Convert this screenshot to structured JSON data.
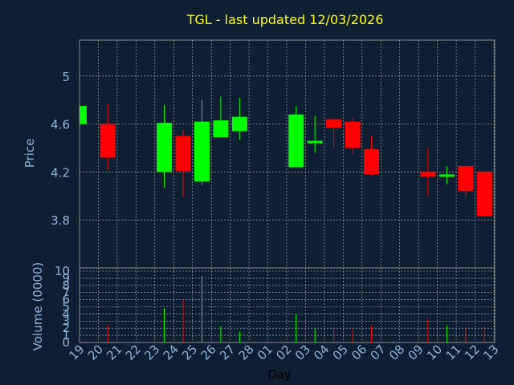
{
  "chart_data": {
    "type": "candlestick",
    "title": "TGL - last updated 12/03/2026",
    "xlabel": "Day",
    "ylabel": "Price",
    "volume_label": "Volume (0000)",
    "x_ticks": [
      "19",
      "20",
      "21",
      "22",
      "23",
      "24",
      "25",
      "26",
      "27",
      "28",
      "01",
      "02",
      "03",
      "04",
      "05",
      "06",
      "07",
      "08",
      "09",
      "10",
      "11",
      "12",
      "13"
    ],
    "y_ticks": [
      3.8,
      4.2,
      4.6,
      5
    ],
    "ylim": [
      3.4,
      5.3
    ],
    "volume_ticks": [
      0,
      1,
      2,
      3,
      4,
      5,
      6,
      7,
      8,
      9,
      10
    ],
    "volume_ylim": [
      0,
      10
    ],
    "grid": true,
    "colors": {
      "background": "#0f1f33",
      "up": "#00ff00",
      "down": "#ff0000",
      "title": "#ffff00",
      "axis_text": "#8fb3d6",
      "grid": "#bbbbbb",
      "frame": "#888888",
      "xlabel": "#000000"
    },
    "candles": [
      {
        "x": 0.0,
        "open": 4.6,
        "high": 4.75,
        "low": 4.6,
        "close": 4.75,
        "volume": 0
      },
      {
        "x": 1.0,
        "open": 4.6,
        "high": 4.77,
        "low": 4.22,
        "close": 4.32,
        "volume": 2.5
      },
      {
        "x": 4.0,
        "open": 4.2,
        "high": 4.76,
        "low": 4.07,
        "close": 4.61,
        "volume": 4.8
      },
      {
        "x": 5.0,
        "open": 4.5,
        "high": 4.55,
        "low": 3.99,
        "close": 4.21,
        "volume": 6.0
      },
      {
        "x": 6.0,
        "open": 4.12,
        "high": 4.8,
        "low": 4.09,
        "close": 4.62,
        "volume": 9.3
      },
      {
        "x": 7.0,
        "open": 4.49,
        "high": 4.83,
        "low": 4.49,
        "close": 4.63,
        "volume": 2.3
      },
      {
        "x": 8.0,
        "open": 4.54,
        "high": 4.82,
        "low": 4.47,
        "close": 4.66,
        "volume": 1.5
      },
      {
        "x": 11.0,
        "open": 4.24,
        "high": 4.75,
        "low": 4.24,
        "close": 4.68,
        "volume": 4.0
      },
      {
        "x": 12.0,
        "open": 4.43,
        "high": 4.67,
        "low": 4.36,
        "close": 4.45,
        "volume": 1.9
      },
      {
        "x": 13.0,
        "open": 4.64,
        "high": 4.64,
        "low": 4.4,
        "close": 4.57,
        "volume": 2.0
      },
      {
        "x": 14.0,
        "open": 4.62,
        "high": 4.65,
        "low": 4.35,
        "close": 4.4,
        "volume": 2.0
      },
      {
        "x": 15.0,
        "open": 4.39,
        "high": 4.5,
        "low": 4.17,
        "close": 4.18,
        "volume": 2.3
      },
      {
        "x": 18.0,
        "open": 4.2,
        "high": 4.4,
        "low": 4.0,
        "close": 4.16,
        "volume": 3.3
      },
      {
        "x": 19.0,
        "open": 4.15,
        "high": 4.25,
        "low": 4.1,
        "close": 4.17,
        "volume": 2.4
      },
      {
        "x": 20.0,
        "open": 4.25,
        "high": 4.26,
        "low": 4.0,
        "close": 4.04,
        "volume": 2.1
      },
      {
        "x": 21.0,
        "open": 4.2,
        "high": 4.2,
        "low": 3.83,
        "close": 3.83,
        "volume": 2.3
      }
    ]
  }
}
